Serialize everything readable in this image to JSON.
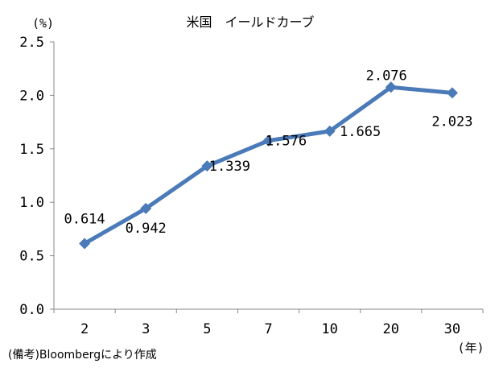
{
  "chart_data": {
    "type": "line",
    "title": "米国　イールドカーブ",
    "ylabel": "(%)",
    "xlabel": "(年)",
    "categories": [
      "2",
      "3",
      "5",
      "7",
      "10",
      "20",
      "30"
    ],
    "values": [
      0.614,
      0.942,
      1.339,
      1.576,
      1.665,
      2.076,
      2.023
    ],
    "value_labels": [
      "0.614",
      "0.942",
      "1.339",
      "1.576",
      "1.665",
      "2.076",
      "2.023"
    ],
    "yticks": [
      "0.0",
      "0.5",
      "1.0",
      "1.5",
      "2.0",
      "2.5"
    ],
    "ylim": [
      0,
      2.5
    ],
    "grid": false,
    "line_color": "#4a7ab8",
    "marker": "diamond"
  },
  "source_note": "(備考)Bloombergにより作成"
}
